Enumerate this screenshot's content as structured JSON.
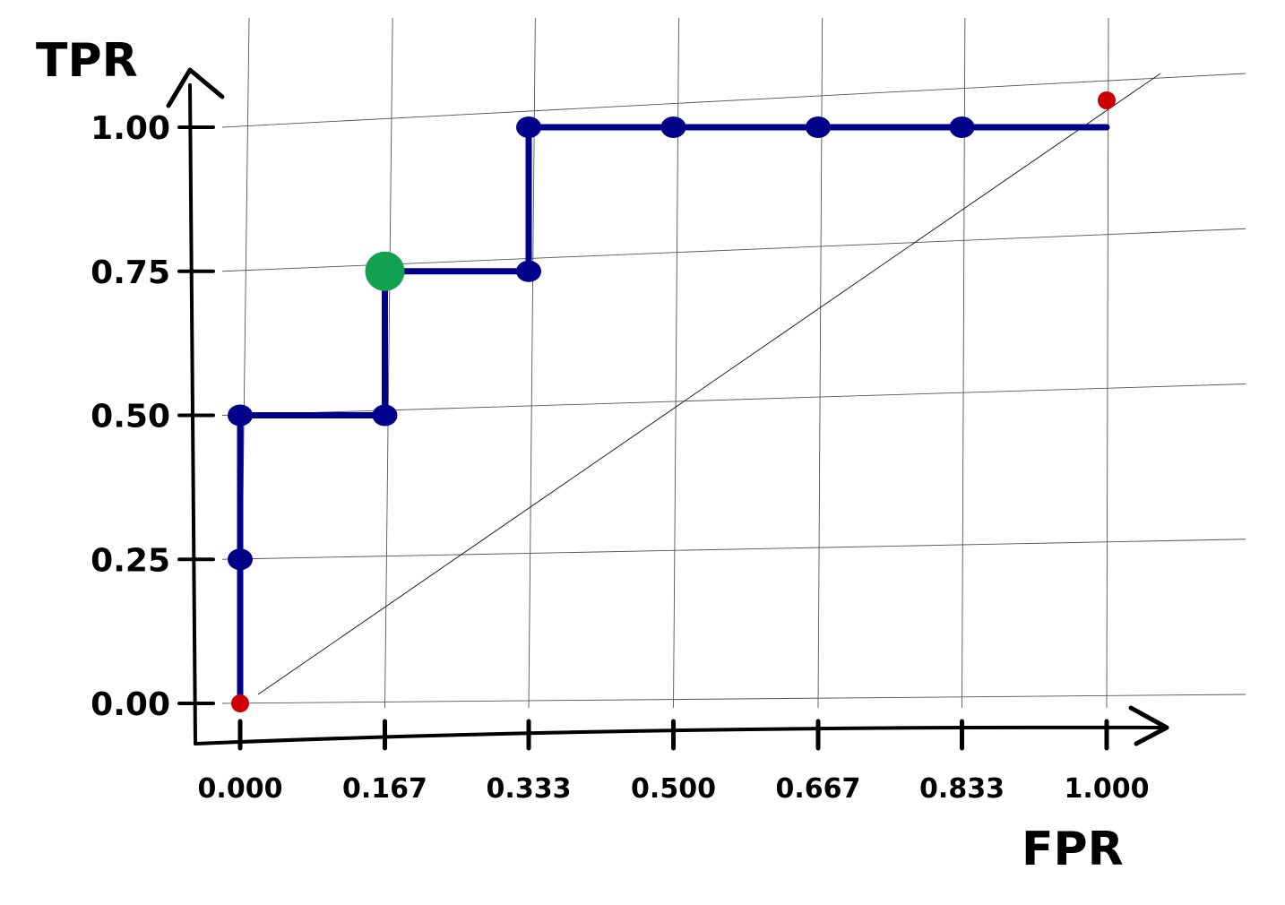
{
  "chart_data": {
    "type": "line",
    "title": "",
    "xlabel": "FPR",
    "ylabel": "TPR",
    "xlim": [
      0,
      1
    ],
    "ylim": [
      0,
      1
    ],
    "grid": true,
    "x_ticks": [
      "0.000",
      "0.167",
      "0.333",
      "0.500",
      "0.667",
      "0.833",
      "1.000"
    ],
    "x_tick_values": [
      0,
      0.167,
      0.333,
      0.5,
      0.667,
      0.833,
      1.0
    ],
    "y_ticks": [
      "0.00",
      "0.25",
      "0.50",
      "0.75",
      "1.00"
    ],
    "y_tick_values": [
      0,
      0.25,
      0.5,
      0.75,
      1.0
    ],
    "series": [
      {
        "x": [
          0,
          0,
          0,
          0.167,
          0.167,
          0.333,
          0.333,
          0.5,
          0.667,
          0.833,
          1.0
        ],
        "y": [
          0,
          0.25,
          0.5,
          0.5,
          0.75,
          0.75,
          1.0,
          1.0,
          1.0,
          1.0,
          1.0
        ],
        "color": "#00008b"
      }
    ],
    "highlight_point": {
      "x": 0.167,
      "y": 0.75,
      "color": "#12a150"
    },
    "endpoints": {
      "points": [
        [
          0,
          0
        ],
        [
          1,
          1
        ]
      ],
      "color": "#cc0000"
    },
    "reference_line": {
      "from": [
        0,
        0
      ],
      "to": [
        1,
        1
      ]
    }
  }
}
